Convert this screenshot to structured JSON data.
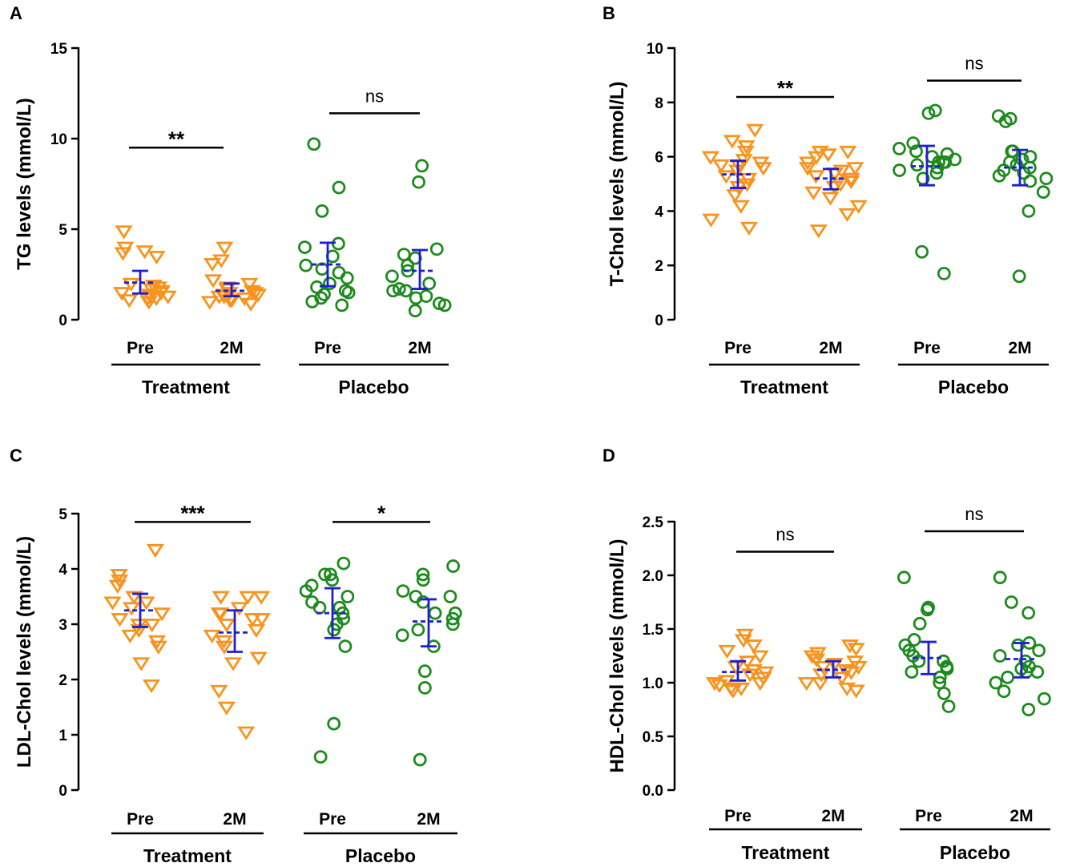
{
  "colors": {
    "treatment": "#f7931e",
    "placebo": "#1e8a1e",
    "summary": "#1f1fd0",
    "axis": "#000000"
  },
  "categories": [
    "Pre",
    "2M",
    "Pre",
    "2M"
  ],
  "groups": [
    "Treatment",
    "Placebo"
  ],
  "chart_data": [
    {
      "type": "scatter",
      "panel": "A",
      "ylabel": "TG levels (mmol/L)",
      "ylim": [
        0,
        15
      ],
      "yticks": [
        "0",
        "5",
        "10",
        "15"
      ],
      "categories": [
        "Pre",
        "2M",
        "Pre",
        "2M"
      ],
      "groups": [
        "Treatment",
        "Placebo"
      ],
      "series": [
        {
          "name": "Treatment Pre",
          "group": "Treatment",
          "marker": "triangle-down",
          "mean": 2.05,
          "err": [
            1.45,
            2.7
          ],
          "values": [
            1.0,
            1.1,
            1.2,
            1.3,
            1.3,
            1.4,
            1.5,
            1.6,
            1.7,
            1.8,
            1.9,
            2.0,
            3.5,
            3.7,
            3.8,
            4.0,
            4.9,
            1.2,
            1.5
          ]
        },
        {
          "name": "Treatment 2M",
          "group": "Treatment",
          "marker": "triangle-down",
          "mean": 1.6,
          "err": [
            1.3,
            2.0
          ],
          "values": [
            0.9,
            1.0,
            1.1,
            1.2,
            1.3,
            1.3,
            1.4,
            1.5,
            1.6,
            1.7,
            1.8,
            2.0,
            2.2,
            3.1,
            3.3,
            4.0,
            1.1,
            1.4,
            1.5
          ]
        },
        {
          "name": "Placebo Pre",
          "group": "Placebo",
          "marker": "circle",
          "mean": 3.05,
          "err": [
            1.85,
            4.25
          ],
          "values": [
            0.8,
            1.0,
            1.4,
            1.5,
            1.6,
            1.8,
            2.0,
            2.3,
            2.6,
            3.0,
            3.5,
            4.0,
            4.2,
            6.0,
            7.3,
            9.7,
            1.2,
            2.8
          ]
        },
        {
          "name": "Placebo 2M",
          "group": "Placebo",
          "marker": "circle",
          "mean": 2.7,
          "err": [
            1.7,
            3.85
          ],
          "values": [
            0.5,
            0.8,
            1.2,
            1.6,
            1.6,
            1.7,
            2.0,
            2.4,
            2.7,
            3.0,
            3.4,
            3.6,
            3.9,
            7.6,
            8.5,
            0.9,
            1.3
          ]
        }
      ],
      "comparisons": [
        {
          "label": "**",
          "y": 9.5
        },
        {
          "label": "ns",
          "y": 11.4
        }
      ]
    },
    {
      "type": "scatter",
      "panel": "B",
      "ylabel": "T-Chol levels (mmol/L)",
      "ylim": [
        0,
        10
      ],
      "yticks": [
        "0",
        "2",
        "4",
        "6",
        "8",
        "10"
      ],
      "categories": [
        "Pre",
        "2M",
        "Pre",
        "2M"
      ],
      "groups": [
        "Treatment",
        "Placebo"
      ],
      "series": [
        {
          "name": "Treatment Pre",
          "group": "Treatment",
          "marker": "triangle-down",
          "mean": 5.35,
          "err": [
            4.85,
            5.85
          ],
          "values": [
            3.4,
            3.7,
            4.2,
            4.6,
            4.9,
            5.0,
            5.3,
            5.5,
            5.6,
            5.7,
            5.7,
            5.8,
            5.9,
            6.0,
            6.2,
            6.4,
            6.6,
            7.0,
            5.2
          ]
        },
        {
          "name": "Treatment 2M",
          "group": "Treatment",
          "marker": "triangle-down",
          "mean": 5.2,
          "err": [
            4.8,
            5.55
          ],
          "values": [
            3.3,
            3.9,
            4.2,
            4.5,
            4.7,
            4.9,
            5.0,
            5.2,
            5.4,
            5.5,
            5.6,
            5.6,
            5.8,
            6.0,
            6.1,
            6.2,
            6.2,
            5.1,
            5.3
          ]
        },
        {
          "name": "Placebo Pre",
          "group": "Placebo",
          "marker": "circle",
          "mean": 5.65,
          "err": [
            4.95,
            6.4
          ],
          "values": [
            1.7,
            2.5,
            5.2,
            5.5,
            5.7,
            5.8,
            5.8,
            5.8,
            5.9,
            6.0,
            6.1,
            6.2,
            6.3,
            6.5,
            7.6,
            7.7,
            5.6,
            5.4
          ]
        },
        {
          "name": "Placebo 2M",
          "group": "Placebo",
          "marker": "circle",
          "mean": 5.6,
          "err": [
            4.95,
            6.25
          ],
          "values": [
            1.6,
            4.0,
            4.7,
            5.1,
            5.3,
            5.4,
            5.5,
            5.6,
            5.7,
            5.8,
            6.0,
            6.2,
            6.2,
            7.3,
            7.4,
            7.5,
            5.9,
            5.2
          ]
        }
      ],
      "comparisons": [
        {
          "label": "**",
          "y": 8.2
        },
        {
          "label": "ns",
          "y": 8.8
        }
      ]
    },
    {
      "type": "scatter",
      "panel": "C",
      "ylabel": "LDL-Chol levels (mmol/L)",
      "ylim": [
        0,
        5
      ],
      "yticks": [
        "0",
        "1",
        "2",
        "3",
        "4",
        "5"
      ],
      "categories": [
        "Pre",
        "2M",
        "Pre",
        "2M"
      ],
      "groups": [
        "Treatment",
        "Placebo"
      ],
      "series": [
        {
          "name": "Treatment Pre",
          "group": "Treatment",
          "marker": "triangle-down",
          "mean": 3.25,
          "err": [
            2.95,
            3.55
          ],
          "values": [
            1.9,
            2.3,
            2.6,
            2.7,
            2.8,
            2.9,
            3.0,
            3.1,
            3.2,
            3.3,
            3.4,
            3.4,
            3.5,
            3.7,
            3.8,
            3.9,
            3.9,
            4.35,
            3.0
          ]
        },
        {
          "name": "Treatment 2M",
          "group": "Treatment",
          "marker": "triangle-down",
          "mean": 2.85,
          "err": [
            2.5,
            3.25
          ],
          "values": [
            1.05,
            1.5,
            1.8,
            2.3,
            2.4,
            2.6,
            2.8,
            2.9,
            3.0,
            3.1,
            3.2,
            3.2,
            3.3,
            3.5,
            3.5,
            3.5,
            2.7,
            3.1
          ]
        },
        {
          "name": "Placebo Pre",
          "group": "Placebo",
          "marker": "circle",
          "mean": 3.2,
          "err": [
            2.75,
            3.65
          ],
          "values": [
            0.6,
            1.2,
            2.6,
            2.9,
            3.1,
            3.2,
            3.3,
            3.4,
            3.5,
            3.6,
            3.7,
            3.8,
            3.9,
            3.9,
            4.1,
            3.3,
            3.0
          ]
        },
        {
          "name": "Placebo 2M",
          "group": "Placebo",
          "marker": "circle",
          "mean": 3.05,
          "err": [
            2.6,
            3.45
          ],
          "values": [
            0.55,
            1.85,
            2.15,
            2.6,
            2.9,
            3.0,
            3.1,
            3.2,
            3.4,
            3.5,
            3.5,
            3.6,
            3.8,
            3.9,
            4.05,
            3.2,
            2.8
          ]
        }
      ],
      "comparisons": [
        {
          "label": "***",
          "y": 4.85
        },
        {
          "label": "*",
          "y": 4.85
        }
      ]
    },
    {
      "type": "scatter",
      "panel": "D",
      "ylabel": "HDL-Chol levels (mmol/L)",
      "ylim": [
        0,
        2.5
      ],
      "yticks": [
        "0.0",
        "0.5",
        "1.0",
        "1.5",
        "2.0",
        "2.5"
      ],
      "categories": [
        "Pre",
        "2M",
        "Pre",
        "2M"
      ],
      "groups": [
        "Treatment",
        "Placebo"
      ],
      "series": [
        {
          "name": "Treatment Pre",
          "group": "Treatment",
          "marker": "triangle-down",
          "mean": 1.1,
          "err": [
            1.02,
            1.2
          ],
          "values": [
            0.93,
            0.95,
            0.98,
            1.0,
            1.02,
            1.05,
            1.08,
            1.1,
            1.12,
            1.15,
            1.2,
            1.25,
            1.3,
            1.35,
            1.4,
            1.45,
            0.95,
            1.0
          ]
        },
        {
          "name": "Treatment 2M",
          "group": "Treatment",
          "marker": "triangle-down",
          "mean": 1.12,
          "err": [
            1.05,
            1.2
          ],
          "values": [
            0.93,
            0.95,
            1.0,
            1.05,
            1.08,
            1.1,
            1.12,
            1.15,
            1.18,
            1.2,
            1.22,
            1.25,
            1.28,
            1.32,
            1.35,
            1.0,
            1.15
          ]
        },
        {
          "name": "Placebo Pre",
          "group": "Placebo",
          "marker": "circle",
          "mean": 1.23,
          "err": [
            1.08,
            1.38
          ],
          "values": [
            0.78,
            0.9,
            1.0,
            1.05,
            1.1,
            1.13,
            1.15,
            1.2,
            1.25,
            1.3,
            1.35,
            1.4,
            1.55,
            1.68,
            1.7,
            1.98,
            1.2
          ]
        },
        {
          "name": "Placebo 2M",
          "group": "Placebo",
          "marker": "circle",
          "mean": 1.22,
          "err": [
            1.05,
            1.37
          ],
          "values": [
            0.75,
            0.85,
            0.92,
            1.0,
            1.05,
            1.1,
            1.13,
            1.15,
            1.2,
            1.25,
            1.3,
            1.35,
            1.37,
            1.65,
            1.75,
            1.98,
            1.1
          ]
        }
      ],
      "comparisons": [
        {
          "label": "ns",
          "y": 2.22
        },
        {
          "label": "ns",
          "y": 2.41
        }
      ]
    }
  ]
}
